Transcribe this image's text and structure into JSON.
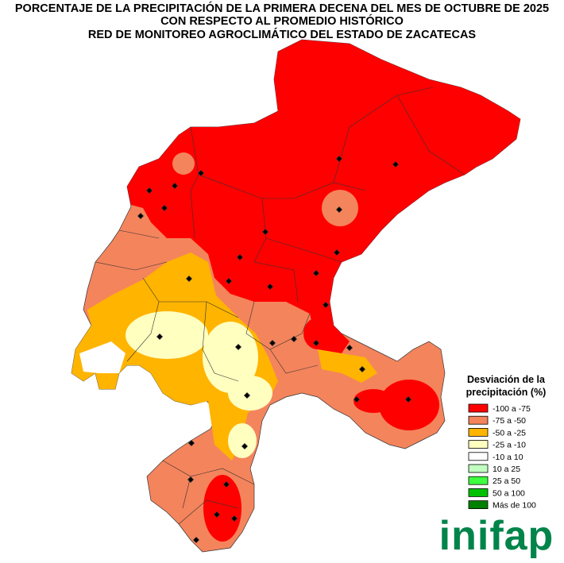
{
  "title": [
    "PORCENTAJE DE LA PRECIPITACIÓN DE LA PRIMERA DECENA DEL MES DE OCTUBRE DE 2025",
    "CON RESPECTO AL PROMEDIO HISTÓRICO",
    "RED DE MONITOREO AGROCLIMÁTICO DEL ESTADO DE ZACATECAS"
  ],
  "legend": {
    "title": [
      "Desviación de la",
      "precipitación (%)"
    ],
    "items": [
      {
        "label": "-100 a -75",
        "color": "#ff0000"
      },
      {
        "label": "-75 a -50",
        "color": "#f4845c"
      },
      {
        "label": "-50 a -25",
        "color": "#ffb400"
      },
      {
        "label": "-25 a -10",
        "color": "#ffffc0"
      },
      {
        "label": "-10 a 10",
        "color": "#ffffff"
      },
      {
        "label": "10 a 25",
        "color": "#c0ffc0"
      },
      {
        "label": "25 a 50",
        "color": "#40ff40"
      },
      {
        "label": "50 a 100",
        "color": "#00c000"
      },
      {
        "label": "Más de 100",
        "color": "#008000"
      }
    ]
  },
  "logo": "inifap"
}
